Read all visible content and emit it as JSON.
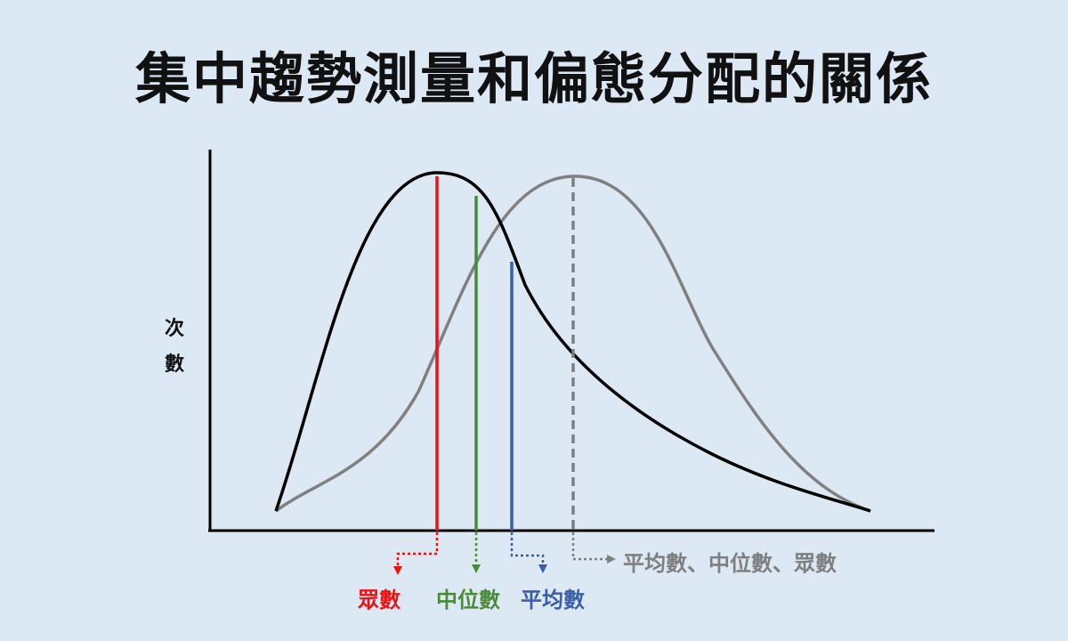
{
  "title": "集中趨勢測量和偏態分配的關係",
  "y_axis_label": [
    "次",
    "數"
  ],
  "labels": {
    "mode": "眾數",
    "median": "中位數",
    "mean": "平均數",
    "symmetric": "平均數、中位數、眾數"
  },
  "colors": {
    "background": "#dde8f5",
    "skewed_curve": "#000000",
    "normal_curve": "#808080",
    "mode": "#ee1111",
    "median": "#4a8a3a",
    "mean": "#3a5ea8",
    "symmetric": "#7f7f7f"
  }
}
